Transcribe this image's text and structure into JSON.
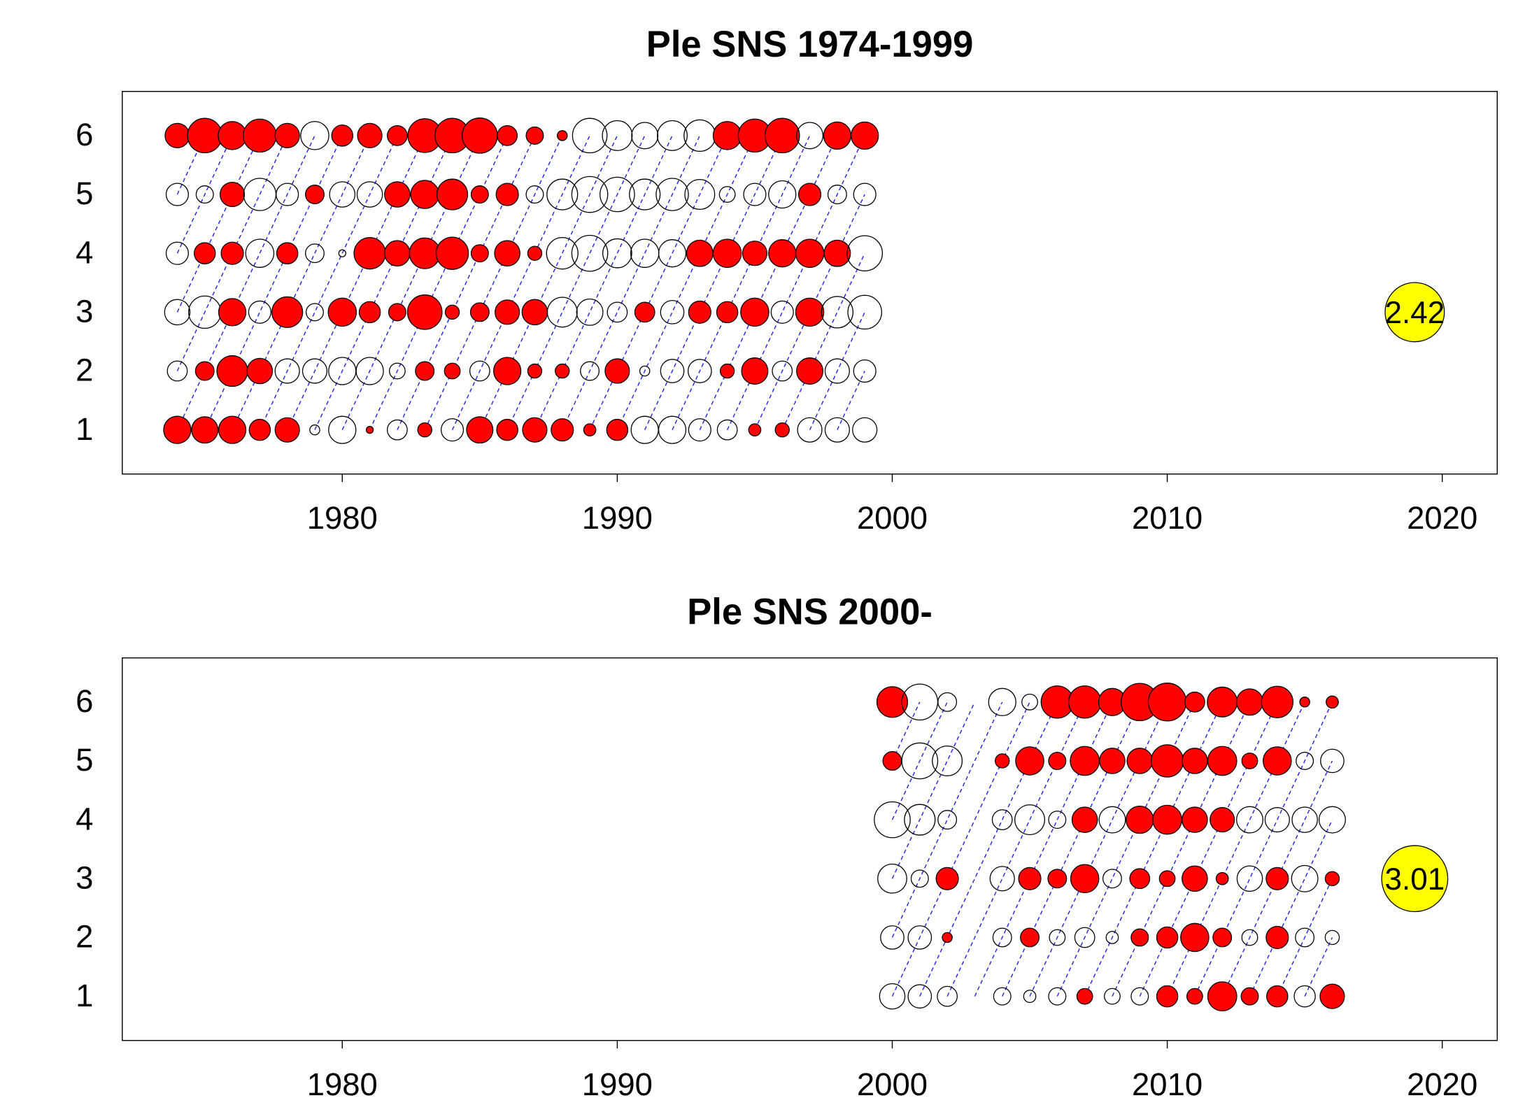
{
  "chart_data": [
    {
      "type": "bubble",
      "title": "Ple SNS 1974-1999",
      "xlabel": "",
      "ylabel": "",
      "xlim": [
        1972,
        2022
      ],
      "ylim": [
        0.25,
        6.75
      ],
      "x_ticks": [
        1980,
        1990,
        2000,
        2010,
        2020
      ],
      "y_ticks": [
        1,
        2,
        3,
        4,
        5,
        6
      ],
      "years": [
        1974,
        1975,
        1976,
        1977,
        1978,
        1979,
        1980,
        1981,
        1982,
        1983,
        1984,
        1985,
        1986,
        1987,
        1988,
        1989,
        1990,
        1991,
        1992,
        1993,
        1994,
        1995,
        1996,
        1997,
        1998,
        1999
      ],
      "ages": [
        1,
        2,
        3,
        4,
        5,
        6
      ],
      "residuals": {
        "1": [
          -1.5,
          -1.4,
          -1.5,
          -0.9,
          -1.2,
          0.2,
          1.5,
          -0.1,
          0.8,
          -0.4,
          1.0,
          -1.4,
          -0.9,
          -1.2,
          -1.0,
          -0.3,
          -0.9,
          1.5,
          1.5,
          1.0,
          0.8,
          -0.3,
          -0.4,
          1.2,
          1.2,
          1.2
        ],
        "2": [
          0.8,
          -0.7,
          -1.9,
          -1.3,
          1.2,
          1.2,
          1.5,
          1.5,
          0.5,
          -0.7,
          -0.5,
          0.8,
          -1.5,
          -0.4,
          -0.4,
          0.7,
          -1.2,
          0.2,
          1.1,
          1.1,
          -0.4,
          -1.4,
          0.8,
          -1.4,
          1.2,
          1.0
        ],
        "3": [
          1.3,
          2.1,
          -1.5,
          1.0,
          -1.9,
          0.6,
          -1.6,
          -0.9,
          -0.6,
          -2.4,
          -0.4,
          -0.7,
          -1.2,
          -1.3,
          1.8,
          1.4,
          0.8,
          -0.8,
          1.1,
          -1.0,
          -0.9,
          -1.6,
          1.0,
          -1.6,
          2.0,
          2.3
        ],
        "4": [
          1.0,
          -0.9,
          -1.0,
          1.6,
          -0.9,
          0.7,
          0.1,
          -2.0,
          -1.3,
          -1.9,
          -2.1,
          -0.6,
          -1.3,
          -0.4,
          2.0,
          2.6,
          1.7,
          1.6,
          1.5,
          -1.4,
          -1.6,
          -1.2,
          -1.5,
          -1.6,
          -1.4,
          2.5
        ],
        "5": [
          1.0,
          0.6,
          -1.2,
          2.1,
          1.0,
          -0.7,
          1.3,
          1.3,
          -1.3,
          -1.6,
          -1.9,
          -0.6,
          -1.0,
          0.6,
          1.9,
          2.6,
          2.4,
          1.9,
          2.1,
          1.8,
          0.5,
          1.0,
          1.5,
          -1.0,
          0.7,
          1.0
        ],
        "6": [
          -1.2,
          -2.4,
          -1.6,
          -2.2,
          -1.2,
          1.6,
          -0.9,
          -1.2,
          -0.8,
          -2.3,
          -2.4,
          -2.5,
          -0.8,
          -0.6,
          -0.2,
          2.4,
          1.8,
          1.4,
          1.8,
          2.0,
          -1.6,
          -2.2,
          -2.4,
          1.4,
          -1.5,
          -1.5
        ]
      },
      "reference_value": "2.42",
      "reference_x": 2019,
      "reference_y": 3
    },
    {
      "type": "bubble",
      "title": "Ple SNS 2000-",
      "xlabel": "",
      "ylabel": "",
      "xlim": [
        1972,
        2022
      ],
      "ylim": [
        0.25,
        6.75
      ],
      "x_ticks": [
        1980,
        1990,
        2000,
        2010,
        2020
      ],
      "y_ticks": [
        1,
        2,
        3,
        4,
        5,
        6
      ],
      "years": [
        2000,
        2001,
        2002,
        2004,
        2005,
        2006,
        2007,
        2008,
        2009,
        2010,
        2011,
        2012,
        2013,
        2014,
        2015,
        2016
      ],
      "ages": [
        1,
        2,
        3,
        4,
        5,
        6
      ],
      "residuals": {
        "1": [
          1.3,
          1.1,
          0.8,
          0.6,
          0.3,
          0.6,
          -0.5,
          0.5,
          0.6,
          -0.9,
          -0.5,
          -1.7,
          -0.6,
          -0.9,
          0.9,
          -1.2
        ],
        "2": [
          1.1,
          1.1,
          -0.2,
          0.7,
          -0.7,
          0.5,
          0.8,
          0.3,
          -0.6,
          -0.9,
          -1.6,
          -0.7,
          0.5,
          -1.0,
          0.7,
          0.4
        ],
        "3": [
          1.7,
          0.6,
          -1.0,
          1.2,
          -1.0,
          -0.7,
          -1.6,
          0.7,
          -0.8,
          -0.5,
          -1.3,
          -0.3,
          1.3,
          -1.0,
          1.4,
          -0.4
        ],
        "4": [
          2.6,
          1.9,
          0.7,
          0.8,
          1.8,
          0.6,
          -1.3,
          1.4,
          -1.5,
          -1.7,
          -1.3,
          -1.2,
          1.4,
          1.2,
          1.3,
          1.4
        ],
        "5": [
          -0.7,
          2.6,
          1.8,
          -0.4,
          -1.6,
          -0.6,
          -1.7,
          -1.3,
          -1.3,
          -2.1,
          -1.3,
          -1.7,
          -0.5,
          -1.6,
          0.6,
          1.1
        ],
        "6": [
          -1.9,
          2.6,
          0.7,
          1.5,
          0.5,
          -2.1,
          -2.1,
          -1.5,
          -2.8,
          -2.9,
          -0.8,
          -1.8,
          -1.4,
          -2.0,
          -0.2,
          -0.3
        ]
      },
      "reference_value": "3.01",
      "reference_x": 2019,
      "reference_y": 3
    }
  ]
}
